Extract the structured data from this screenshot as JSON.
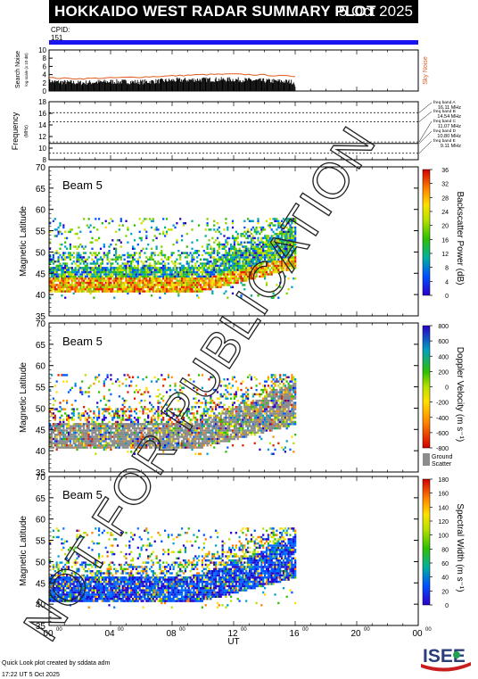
{
  "header": {
    "title": "HOKKAIDO WEST RADAR SUMMARY PLOT",
    "date": "5 Oct 2025",
    "cpid_label": "CPID:",
    "cpid_value": "151"
  },
  "watermark": "NOT FOR PUBLICATION",
  "footer": {
    "line1": "Quick Look plot created by sddata adm",
    "line2": "17:22 UT  5 Oct 2025"
  },
  "logo_text": "ISEE",
  "colors": {
    "title_bg": "#000000",
    "cpid_bar": "#1a14f0",
    "sky_noise": "#e05a1e",
    "ground_scatter": "#8c8c8c"
  },
  "chart_data": [
    {
      "type": "area",
      "name": "search-noise",
      "ylabel": "Search Noise",
      "ylabel_units": "log scale (x 10 dB)",
      "right_label": "Sky Noise",
      "ylim": [
        0,
        10
      ],
      "yticks": [
        "0",
        "2",
        "4",
        "6",
        "8",
        "10"
      ],
      "xlim": [
        0,
        24
      ],
      "data_end_hour": 16,
      "search_noise": {
        "x": [
          0,
          2,
          4,
          6,
          8,
          10,
          12,
          14,
          15,
          16
        ],
        "y": [
          2.3,
          2.0,
          2.3,
          2.2,
          2.6,
          2.8,
          2.8,
          2.5,
          2.4,
          2.2
        ]
      },
      "sky_noise": {
        "x": [
          0,
          2,
          4,
          6,
          8,
          10,
          12,
          14,
          15,
          16
        ],
        "y": [
          3.2,
          3.0,
          3.2,
          3.4,
          3.7,
          4.0,
          4.1,
          3.9,
          3.7,
          3.6
        ]
      }
    },
    {
      "type": "line",
      "name": "frequency",
      "ylabel": "Frequency",
      "ylabel_units": "(MHz)",
      "ylim": [
        8,
        18
      ],
      "yticks": [
        "8",
        "10",
        "12",
        "14",
        "16",
        "18"
      ],
      "dotted_lines": [
        16.11,
        14.54,
        11.07,
        9.11
      ],
      "solid_line": 10.8,
      "bands": [
        {
          "name": "freq band A",
          "value": "16.11 MHz"
        },
        {
          "name": "freq band B",
          "value": "14.54 MHz"
        },
        {
          "name": "freq band C",
          "value": "11.07 MHz"
        },
        {
          "name": "freq band D",
          "value": "10.80 MHz"
        },
        {
          "name": "freq band E",
          "value": "9.11 MHz"
        }
      ]
    },
    {
      "type": "heatmap",
      "name": "power",
      "beam_label": "Beam  5",
      "ylabel": "Magnetic Latitude",
      "ylim": [
        35,
        70
      ],
      "yticks": [
        "35",
        "40",
        "45",
        "50",
        "55",
        "60",
        "65",
        "70"
      ],
      "colorbar_label": "Backscatter Power (dB)",
      "colorbar_ticks": [
        "0",
        "4",
        "8",
        "12",
        "16",
        "20",
        "24",
        "28",
        "32",
        "36"
      ]
    },
    {
      "type": "heatmap",
      "name": "velocity",
      "beam_label": "Beam  5",
      "ylabel": "Magnetic Latitude",
      "ylim": [
        35,
        70
      ],
      "yticks": [
        "35",
        "40",
        "45",
        "50",
        "55",
        "60",
        "65",
        "70"
      ],
      "colorbar_label": "Doppler Velocity (m s⁻¹)",
      "colorbar_ticks": [
        "-800",
        "-600",
        "-400",
        "-200",
        "0",
        "200",
        "400",
        "600",
        "800"
      ],
      "ground_scatter_label": "Ground Scatter"
    },
    {
      "type": "heatmap",
      "name": "width",
      "beam_label": "Beam  5",
      "ylabel": "Magnetic Latitude",
      "ylim": [
        35,
        70
      ],
      "yticks": [
        "35",
        "40",
        "45",
        "50",
        "55",
        "60",
        "65",
        "70"
      ],
      "colorbar_label": "Spectral Width (m s⁻¹)",
      "colorbar_ticks": [
        "0",
        "20",
        "40",
        "60",
        "80",
        "100",
        "120",
        "140",
        "160",
        "180"
      ]
    }
  ],
  "time_axis": {
    "label": "UT",
    "ticks": [
      {
        "h": "00",
        "m": "00"
      },
      {
        "h": "04",
        "m": "00"
      },
      {
        "h": "08",
        "m": "00"
      },
      {
        "h": "12",
        "m": "00"
      },
      {
        "h": "16",
        "m": "00"
      },
      {
        "h": "20",
        "m": "00"
      },
      {
        "h": "00",
        "m": "00"
      }
    ]
  }
}
